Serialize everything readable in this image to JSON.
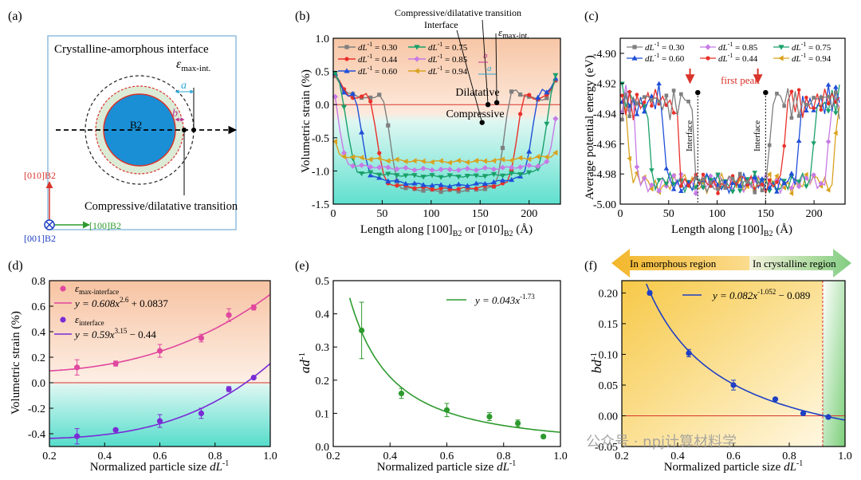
{
  "colors": {
    "c030": "#7f7f7f",
    "c044": "#e8302a",
    "c060": "#1f4fd8",
    "c075": "#1aa06a",
    "c085": "#c77ae6",
    "c094": "#d9a21f",
    "pink": "#e0479e",
    "purple": "#7a2bd6",
    "green": "#2e9a2e",
    "blue": "#1f3fc4",
    "zero": "#d9342b"
  },
  "watermark": "公众号 · npj计算材料学",
  "panel_a": {
    "label": "(a)",
    "title": "Crystalline-amorphous interface",
    "eps_label": "ε",
    "eps_sub": "max-int.",
    "a_label": "a",
    "b_label": "b",
    "core_label": "B2",
    "bottom_label": "Compressive/dilatative transition",
    "axis_y": "[010]B2",
    "axis_x": "[100]B2",
    "axis_z": "[001]B2"
  },
  "chart_data": [
    {
      "id": "b",
      "type": "line",
      "label": "(b)",
      "xlabel_main": "Length along [100]",
      "xlabel_sub1": "B2",
      "xlabel_mid": " or [010]",
      "xlabel_sub2": "B2",
      "xlabel_unit": " (Å)",
      "ylabel": "Volumetric strain (%)",
      "xlim": [
        0,
        232
      ],
      "ylim": [
        -1.5,
        1.0
      ],
      "xticks": [
        0,
        50,
        100,
        150,
        200
      ],
      "yticks": [
        -1.5,
        -1.0,
        -0.5,
        0.0,
        0.5,
        1.0
      ],
      "xtick_labels": [
        "0",
        "50",
        "100",
        "150",
        "200"
      ],
      "ytick_labels": [
        "-1.5",
        "-1.0",
        "-0.5",
        "0.0",
        "0.5",
        "1.0"
      ],
      "region_top": "Dilatative",
      "region_bottom": "Compressive",
      "annotations": {
        "transition": "Compressive/dilatative transition",
        "interface": "Interface",
        "eps": "ε",
        "eps_sub": "max-int.",
        "a": "a",
        "b": "b"
      },
      "legend_prefix": "dL",
      "legend_sup": "-1",
      "series": [
        {
          "name": " = 0.30",
          "size": 0.3,
          "color_key": "c030",
          "marker": "square",
          "bottom": -1.3
        },
        {
          "name": " = 0.44",
          "size": 0.44,
          "color_key": "c044",
          "marker": "circle",
          "bottom": -1.27
        },
        {
          "name": " = 0.60",
          "size": 0.6,
          "color_key": "c060",
          "marker": "triangle",
          "bottom": -1.22
        },
        {
          "name": " = 0.75",
          "size": 0.75,
          "color_key": "c075",
          "marker": "tri-down",
          "bottom": -1.08
        },
        {
          "name": " = 0.85",
          "size": 0.85,
          "color_key": "c085",
          "marker": "diamond",
          "bottom": -0.98
        },
        {
          "name": " = 0.94",
          "size": 0.94,
          "color_key": "c094",
          "marker": "tri-left",
          "bottom": -0.86
        }
      ]
    },
    {
      "id": "c",
      "type": "line",
      "label": "(c)",
      "xlabel_main": "Length along [100]",
      "xlabel_sub1": "B2",
      "xlabel_unit": " (Å)",
      "ylabel": "Average potential energy (eV)",
      "xlim": [
        0,
        232
      ],
      "ylim": [
        -5.0,
        -4.89
      ],
      "xticks": [
        0,
        50,
        100,
        150,
        200
      ],
      "yticks": [
        -5.0,
        -4.98,
        -4.96,
        -4.94,
        -4.92,
        -4.9
      ],
      "xtick_labels": [
        "0",
        "50",
        "100",
        "150",
        "200"
      ],
      "ytick_labels": [
        "-5.00",
        "-4.98",
        "-4.96",
        "-4.94",
        "-4.92",
        "-4.90"
      ],
      "annotations": {
        "first_peak": "first peak",
        "interface_left": "Interface",
        "interface_right": "Interface"
      },
      "peaks_x": [
        80,
        150
      ],
      "legend_prefix": "dL",
      "legend_sup": "-1",
      "series": [
        {
          "name": " = 0.30",
          "size": 0.3,
          "color_key": "c030",
          "marker": "square",
          "left_edge": 75,
          "right_edge": 155
        },
        {
          "name": " = 0.85",
          "size": 0.85,
          "color_key": "c085",
          "marker": "diamond",
          "left_edge": 15,
          "right_edge": 215
        },
        {
          "name": " = 0.75",
          "size": 0.75,
          "color_key": "c075",
          "marker": "tri-down",
          "left_edge": 30,
          "right_edge": 200
        },
        {
          "name": " = 0.60",
          "size": 0.6,
          "color_key": "c060",
          "marker": "triangle",
          "left_edge": 45,
          "right_edge": 185
        },
        {
          "name": " = 0.44",
          "size": 0.44,
          "color_key": "c044",
          "marker": "circle",
          "left_edge": 60,
          "right_edge": 170
        },
        {
          "name": " = 0.94",
          "size": 0.94,
          "color_key": "c094",
          "marker": "tri-left",
          "left_edge": 8,
          "right_edge": 222
        }
      ]
    },
    {
      "id": "d",
      "type": "scatter",
      "label": "(d)",
      "xlabel": "Normalized particle size ",
      "xlabel_var": "dL",
      "xlabel_sup": "-1",
      "ylabel": "Volumetric strain (%)",
      "xlim": [
        0.2,
        1.0
      ],
      "ylim": [
        -0.5,
        0.8
      ],
      "xticks": [
        0.2,
        0.4,
        0.6,
        0.8,
        1.0
      ],
      "yticks": [
        -0.4,
        -0.2,
        0.0,
        0.2,
        0.4,
        0.6,
        0.8
      ],
      "xtick_labels": [
        "0.2",
        "0.4",
        "0.6",
        "0.8",
        "1.0"
      ],
      "ytick_labels": [
        "-0.4",
        "-0.2",
        "0.0",
        "0.2",
        "0.4",
        "0.6",
        "0.8"
      ],
      "series": [
        {
          "name": "ε",
          "name_sub": "max-interface",
          "fit_label": "y = 0.608x",
          "fit_sup": "2.6",
          "fit_tail": " + 0.0837",
          "color_key": "pink",
          "fit": {
            "a": 0.608,
            "p": 2.6,
            "c": 0.0837
          },
          "x": [
            0.3,
            0.44,
            0.6,
            0.75,
            0.85,
            0.94
          ],
          "y": [
            0.12,
            0.15,
            0.25,
            0.35,
            0.53,
            0.59
          ],
          "err": [
            0.06,
            0.02,
            0.05,
            0.03,
            0.05,
            0.02
          ]
        },
        {
          "name": "ε",
          "name_sub": "interface",
          "fit_label": "y = 0.59x",
          "fit_sup": "3.15",
          "fit_tail": " − 0.44",
          "color_key": "purple",
          "fit": {
            "a": 0.59,
            "p": 3.15,
            "c": -0.44
          },
          "x": [
            0.3,
            0.44,
            0.6,
            0.75,
            0.85,
            0.94
          ],
          "y": [
            -0.42,
            -0.37,
            -0.3,
            -0.24,
            -0.05,
            0.04
          ],
          "err": [
            0.06,
            0.01,
            0.05,
            0.04,
            0.02,
            0.01
          ]
        }
      ]
    },
    {
      "id": "e",
      "type": "scatter",
      "label": "(e)",
      "xlabel": "Normalized particle size ",
      "xlabel_var": "dL",
      "xlabel_sup": "-1",
      "ylabel": "ad",
      "ylabel_sup": "-1",
      "xlim": [
        0.2,
        1.0
      ],
      "ylim": [
        0.0,
        0.5
      ],
      "xticks": [
        0.2,
        0.4,
        0.6,
        0.8,
        1.0
      ],
      "yticks": [
        0.0,
        0.1,
        0.2,
        0.3,
        0.4,
        0.5
      ],
      "xtick_labels": [
        "0.2",
        "0.4",
        "0.6",
        "0.8",
        "1.0"
      ],
      "ytick_labels": [
        "0.0",
        "0.1",
        "0.2",
        "0.3",
        "0.4",
        "0.5"
      ],
      "series": [
        {
          "fit_label": "y = 0.043x",
          "fit_sup": "-1.73",
          "color_key": "green",
          "fit": {
            "a": 0.043,
            "p": -1.73,
            "c": 0
          },
          "x": [
            0.3,
            0.44,
            0.6,
            0.75,
            0.85,
            0.94
          ],
          "y": [
            0.35,
            0.16,
            0.11,
            0.09,
            0.07,
            0.03
          ],
          "err": [
            0.085,
            0.015,
            0.02,
            0.012,
            0.01,
            0.005
          ]
        }
      ]
    },
    {
      "id": "f",
      "type": "scatter",
      "label": "(f)",
      "xlabel": "Normalized particle size ",
      "xlabel_var": "dL",
      "xlabel_sup": "-1",
      "ylabel": "bd",
      "ylabel_sup": "-1",
      "xlim": [
        0.2,
        1.0
      ],
      "ylim": [
        -0.05,
        0.22
      ],
      "xticks": [
        0.2,
        0.4,
        0.6,
        0.8,
        1.0
      ],
      "yticks": [
        -0.05,
        0.0,
        0.05,
        0.1,
        0.15,
        0.2
      ],
      "xtick_labels": [
        "0.2",
        "0.4",
        "0.6",
        "0.8",
        "1.0"
      ],
      "ytick_labels": [
        "-0.05",
        "0.00",
        "0.05",
        "0.10",
        "0.15",
        "0.20"
      ],
      "region_left": "In amorphous region",
      "region_right": "In crystalline region",
      "boundary_x": 0.92,
      "series": [
        {
          "fit_label": "y = 0.082x",
          "fit_sup": "-1.052",
          "fit_tail": " − 0.089",
          "color_key": "blue",
          "fit": {
            "a": 0.082,
            "p": -1.052,
            "c": -0.089
          },
          "x": [
            0.3,
            0.44,
            0.6,
            0.75,
            0.85,
            0.94
          ],
          "y": [
            0.2,
            0.102,
            0.05,
            0.027,
            0.004,
            -0.002
          ],
          "err": [
            0.003,
            0.006,
            0.008,
            0.002,
            0.002,
            0.002
          ]
        }
      ]
    }
  ]
}
